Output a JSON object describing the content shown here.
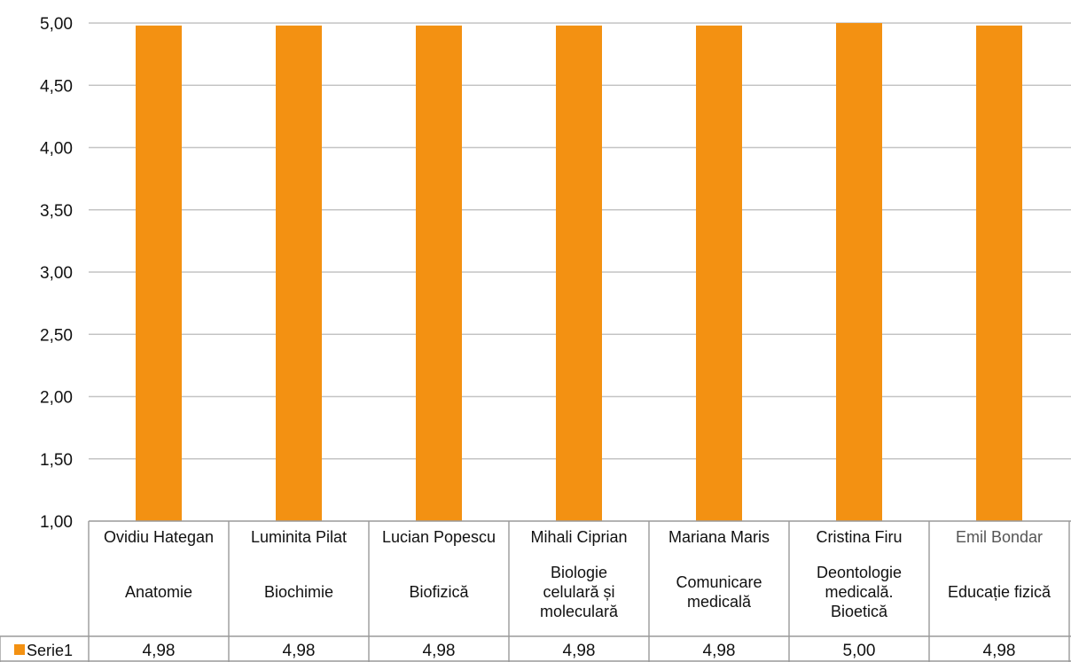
{
  "chart_data": {
    "type": "bar",
    "categories": [
      {
        "name": "Ovidiu Hategan",
        "subject": [
          "Anatomie"
        ]
      },
      {
        "name": "Luminita Pilat",
        "subject": [
          "Biochimie"
        ]
      },
      {
        "name": "Lucian Popescu",
        "subject": [
          "Biofizică"
        ]
      },
      {
        "name": "Mihali Ciprian",
        "subject": [
          "Biologie",
          "celulară și",
          "moleculară"
        ]
      },
      {
        "name": "Mariana Maris",
        "subject": [
          "Comunicare",
          "medicală"
        ]
      },
      {
        "name": "Cristina Firu",
        "subject": [
          "Deontologie",
          "medicală.",
          "Bioetică"
        ]
      },
      {
        "name": "Emil Bondar",
        "subject": [
          "Educație fizică"
        ]
      }
    ],
    "series": [
      {
        "name": "Serie1",
        "values": [
          4.98,
          4.98,
          4.98,
          4.98,
          4.98,
          5.0,
          4.98
        ],
        "labels": [
          "4,98",
          "4,98",
          "4,98",
          "4,98",
          "4,98",
          "5,00",
          "4,98"
        ]
      }
    ],
    "ylim": [
      1.0,
      5.0
    ],
    "yticks": [
      1.0,
      1.5,
      2.0,
      2.5,
      3.0,
      3.5,
      4.0,
      4.5,
      5.0
    ],
    "ytick_labels": [
      "1,00",
      "1,50",
      "2,00",
      "2,50",
      "3,00",
      "3,50",
      "4,00",
      "4,50",
      "5,00"
    ],
    "grid": true,
    "legend": "data-table",
    "colors": {
      "bar": "#F39112",
      "grid": "#c4c4c4",
      "table": "#9a9a9a"
    }
  }
}
